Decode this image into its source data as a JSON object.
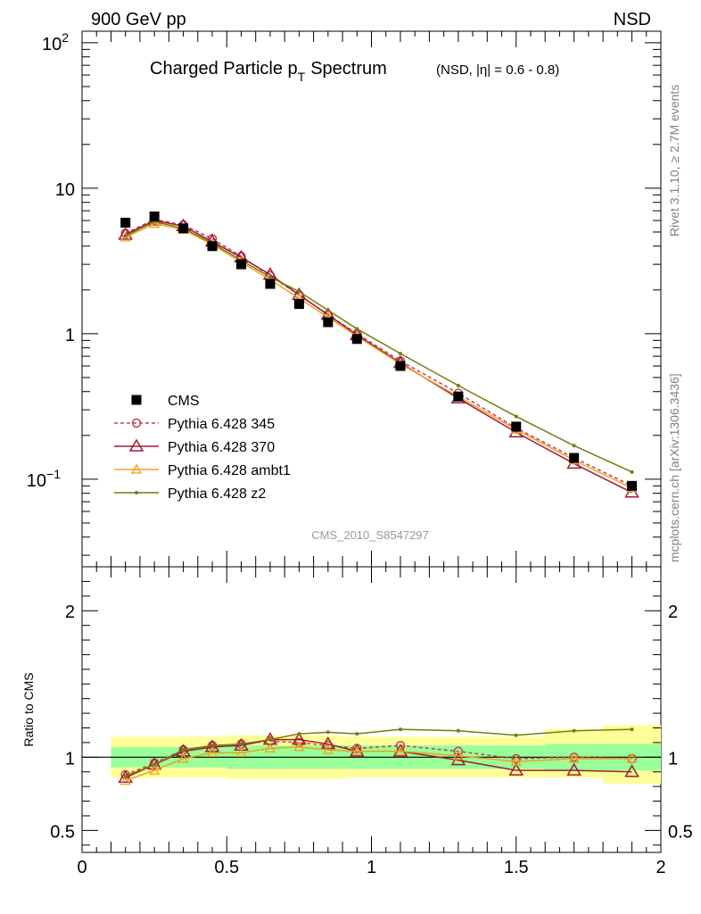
{
  "header": {
    "left": "900 GeV pp",
    "right": "NSD"
  },
  "side_labels": {
    "rivet": "Rivet 3.1.10, ≥ 2.7M events",
    "mcplots": "mcplots.cern.ch [arXiv:1306.3436]"
  },
  "chart_data": [
    {
      "type": "scatter",
      "title": "Charged Particle p",
      "title_sub": "T",
      "title_tail": "Spectrum",
      "subtitle": "(NSD, |η| = 0.6 - 0.8)",
      "analysis_label": "CMS_2010_S8547297",
      "yscale": "log",
      "xlim": [
        0,
        2
      ],
      "ylim": [
        0.025,
        120
      ],
      "yticks": [
        {
          "value": 100,
          "label": "10",
          "sup": "2"
        },
        {
          "value": 10,
          "label": "10",
          "sup": ""
        },
        {
          "value": 1,
          "label": "1",
          "sup": ""
        },
        {
          "value": 0.1,
          "label": "10",
          "sup": "−1"
        }
      ],
      "legend_position": "bottom-left",
      "x": [
        0.15,
        0.25,
        0.35,
        0.45,
        0.55,
        0.65,
        0.75,
        0.85,
        0.95,
        1.1,
        1.3,
        1.5,
        1.7,
        1.9
      ],
      "series": [
        {
          "name": "CMS",
          "color": "#000000",
          "marker": "square",
          "line": "none",
          "values": [
            5.8,
            6.4,
            5.3,
            4.0,
            3.0,
            2.2,
            1.6,
            1.2,
            0.92,
            0.6,
            0.37,
            0.23,
            0.14,
            0.09
          ]
        },
        {
          "name": "Pythia 6.428 345",
          "color": "#c0405a",
          "marker": "circle",
          "line": "dashed",
          "values": [
            4.9,
            6.1,
            5.6,
            4.5,
            3.4,
            2.5,
            1.85,
            1.35,
            1.0,
            0.65,
            0.39,
            0.225,
            0.14,
            0.09
          ]
        },
        {
          "name": "Pythia 6.428 370",
          "color": "#a01a35",
          "marker": "triangle",
          "line": "solid",
          "values": [
            4.8,
            6.0,
            5.5,
            4.3,
            3.35,
            2.55,
            1.85,
            1.35,
            0.98,
            0.63,
            0.36,
            0.21,
            0.128,
            0.081
          ]
        },
        {
          "name": "Pythia 6.428 ambt1",
          "color": "#f0a020",
          "marker": "triangle-small",
          "line": "solid",
          "values": [
            4.6,
            5.7,
            5.2,
            4.1,
            3.1,
            2.35,
            1.75,
            1.3,
            0.96,
            0.62,
            0.37,
            0.22,
            0.135,
            0.087
          ]
        },
        {
          "name": "Pythia 6.428 z2",
          "color": "#7a7a10",
          "marker": "dot",
          "line": "solid",
          "values": [
            4.7,
            5.9,
            5.3,
            4.2,
            3.2,
            2.45,
            1.95,
            1.45,
            1.08,
            0.73,
            0.44,
            0.27,
            0.17,
            0.112
          ]
        }
      ]
    },
    {
      "type": "line",
      "ylabel": "Ratio to CMS",
      "xlim": [
        0,
        2
      ],
      "ylim": [
        0.35,
        2.3
      ],
      "xticks": [
        "0",
        "0.5",
        "1",
        "1.5",
        "2"
      ],
      "yticks": [
        {
          "value": 0.5,
          "label": "0.5"
        },
        {
          "value": 1,
          "label": "1"
        },
        {
          "value": 2,
          "label": "2"
        }
      ],
      "bands": [
        {
          "x0": 0.1,
          "x1": 0.2,
          "inner": [
            0.93,
            1.07
          ],
          "outer": [
            0.86,
            1.14
          ]
        },
        {
          "x0": 0.2,
          "x1": 0.3,
          "inner": [
            0.93,
            1.07
          ],
          "outer": [
            0.86,
            1.14
          ]
        },
        {
          "x0": 0.3,
          "x1": 0.4,
          "inner": [
            0.93,
            1.07
          ],
          "outer": [
            0.86,
            1.14
          ]
        },
        {
          "x0": 0.4,
          "x1": 0.5,
          "inner": [
            0.93,
            1.07
          ],
          "outer": [
            0.86,
            1.14
          ]
        },
        {
          "x0": 0.5,
          "x1": 0.6,
          "inner": [
            0.92,
            1.08
          ],
          "outer": [
            0.85,
            1.15
          ]
        },
        {
          "x0": 0.6,
          "x1": 0.7,
          "inner": [
            0.92,
            1.08
          ],
          "outer": [
            0.85,
            1.15
          ]
        },
        {
          "x0": 0.7,
          "x1": 0.8,
          "inner": [
            0.92,
            1.08
          ],
          "outer": [
            0.85,
            1.15
          ]
        },
        {
          "x0": 0.8,
          "x1": 0.9,
          "inner": [
            0.92,
            1.08
          ],
          "outer": [
            0.85,
            1.15
          ]
        },
        {
          "x0": 0.9,
          "x1": 1.0,
          "inner": [
            0.92,
            1.08
          ],
          "outer": [
            0.86,
            1.14
          ]
        },
        {
          "x0": 1.0,
          "x1": 1.2,
          "inner": [
            0.92,
            1.08
          ],
          "outer": [
            0.86,
            1.14
          ]
        },
        {
          "x0": 1.2,
          "x1": 1.4,
          "inner": [
            0.92,
            1.08
          ],
          "outer": [
            0.86,
            1.14
          ]
        },
        {
          "x0": 1.4,
          "x1": 1.6,
          "inner": [
            0.92,
            1.08
          ],
          "outer": [
            0.86,
            1.14
          ]
        },
        {
          "x0": 1.6,
          "x1": 1.8,
          "inner": [
            0.91,
            1.09
          ],
          "outer": [
            0.86,
            1.19
          ]
        },
        {
          "x0": 1.8,
          "x1": 2.0,
          "inner": [
            0.91,
            1.09
          ],
          "outer": [
            0.82,
            1.22
          ]
        }
      ],
      "x": [
        0.15,
        0.25,
        0.35,
        0.45,
        0.55,
        0.65,
        0.75,
        0.85,
        0.95,
        1.1,
        1.3,
        1.5,
        1.7,
        1.9
      ],
      "series": [
        {
          "name": "Pythia 6.428 345",
          "color": "#c0405a",
          "marker": "circle",
          "line": "dashed",
          "values": [
            0.88,
            0.96,
            1.05,
            1.08,
            1.09,
            1.11,
            1.1,
            1.08,
            1.06,
            1.08,
            1.04,
            0.99,
            1.0,
            0.99
          ]
        },
        {
          "name": "Pythia 6.428 370",
          "color": "#a01a35",
          "marker": "triangle",
          "line": "solid",
          "values": [
            0.86,
            0.95,
            1.04,
            1.07,
            1.08,
            1.12,
            1.12,
            1.09,
            1.04,
            1.04,
            0.98,
            0.91,
            0.91,
            0.9
          ]
        },
        {
          "name": "Pythia 6.428 ambt1",
          "color": "#f0a020",
          "marker": "triangle-small",
          "line": "solid",
          "values": [
            0.84,
            0.91,
            0.99,
            1.03,
            1.03,
            1.06,
            1.07,
            1.05,
            1.04,
            1.04,
            1.01,
            0.97,
            0.99,
            0.99
          ]
        },
        {
          "name": "Pythia 6.428 z2",
          "color": "#7a7a10",
          "marker": "dot",
          "line": "solid",
          "values": [
            0.87,
            0.95,
            1.05,
            1.08,
            1.09,
            1.12,
            1.16,
            1.17,
            1.16,
            1.19,
            1.18,
            1.15,
            1.18,
            1.19
          ]
        }
      ]
    }
  ]
}
